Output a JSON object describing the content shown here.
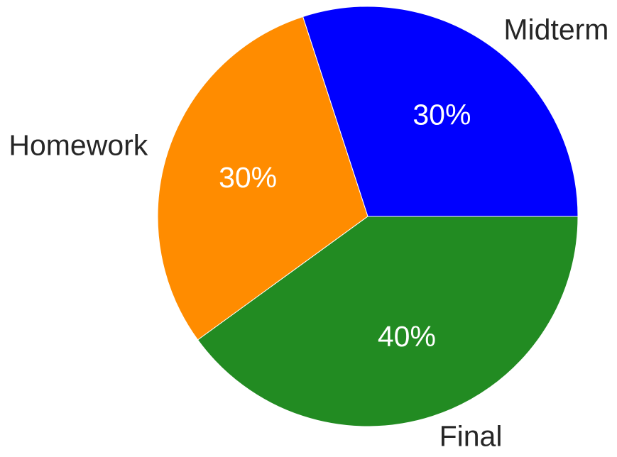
{
  "chart_data": {
    "type": "pie",
    "categories": [
      "Midterm",
      "Homework",
      "Final"
    ],
    "values": [
      30,
      30,
      40
    ],
    "value_labels": [
      "30%",
      "30%",
      "40%"
    ],
    "colors": [
      "#0000ff",
      "#ff8c00",
      "#228b22"
    ],
    "start_angle_deg": 0,
    "direction": "counterclockwise",
    "legend": "none"
  }
}
